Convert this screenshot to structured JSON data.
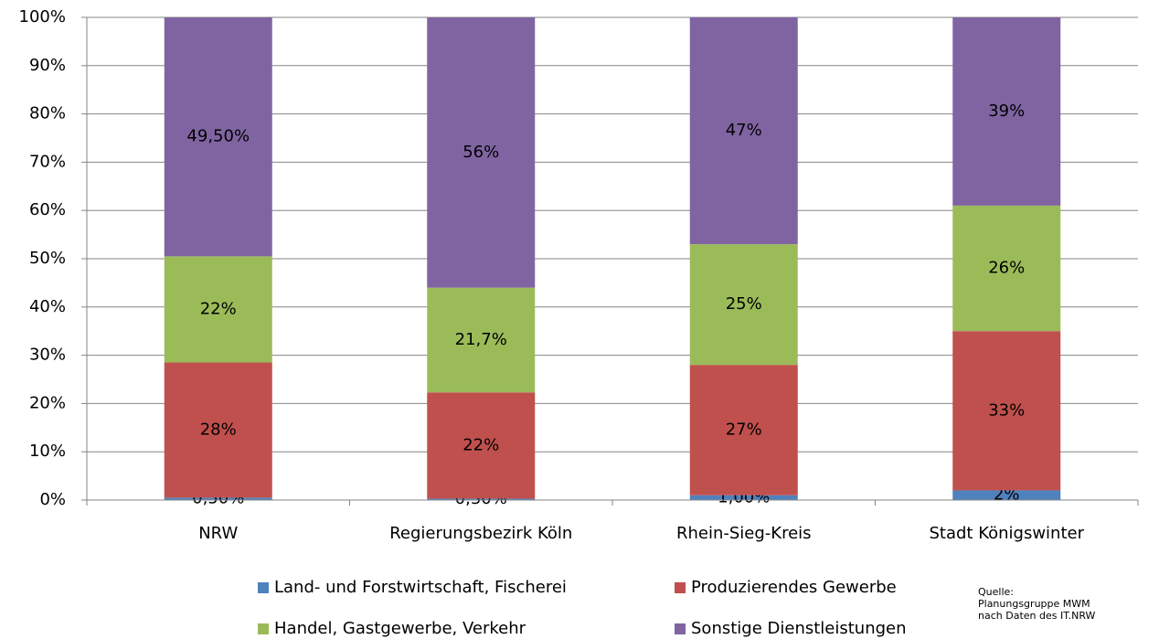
{
  "chart_data": {
    "type": "stacked_bar",
    "categories": [
      "NRW",
      "Regierungsbezirk Köln",
      "Rhein-Sieg-Kreis",
      "Stadt Königswinter"
    ],
    "series": [
      {
        "name": "Land- und Forstwirtschaft, Fischerei",
        "color": "#4f81bd",
        "values": [
          0.5,
          0.3,
          1,
          2
        ],
        "value_labels": [
          "0,50%",
          "0,30%",
          "1,00%",
          "2%"
        ]
      },
      {
        "name": "Produzierendes Gewerbe",
        "color": "#c0504d",
        "values": [
          28,
          22,
          27,
          33
        ],
        "value_labels": [
          "28%",
          "22%",
          "27%",
          "33%"
        ]
      },
      {
        "name": "Handel, Gastgewerbe, Verkehr",
        "color": "#9bbb59",
        "values": [
          22,
          21.7,
          25,
          26
        ],
        "value_labels": [
          "22%",
          "21,7%",
          "25%",
          "26%"
        ]
      },
      {
        "name": "Sonstige Dienstleistungen",
        "color": "#8064a2",
        "values": [
          49.5,
          56,
          47,
          39
        ],
        "value_labels": [
          "49,50%",
          "56%",
          "47%",
          "39%"
        ]
      }
    ],
    "ylim": [
      0,
      100
    ],
    "yticks": [
      {
        "value": 0,
        "label": "0%"
      },
      {
        "value": 10,
        "label": "10%"
      },
      {
        "value": 20,
        "label": "20%"
      },
      {
        "value": 30,
        "label": "30%"
      },
      {
        "value": 40,
        "label": "40%"
      },
      {
        "value": 50,
        "label": "50%"
      },
      {
        "value": 60,
        "label": "60%"
      },
      {
        "value": 70,
        "label": "70%"
      },
      {
        "value": 80,
        "label": "80%"
      },
      {
        "value": 90,
        "label": "90%"
      },
      {
        "value": 100,
        "label": "100%"
      }
    ],
    "grid": true,
    "legend": "bottom",
    "source": [
      "Quelle:",
      "Planungsgruppe MWM",
      "nach Daten des  IT.NRW"
    ]
  }
}
